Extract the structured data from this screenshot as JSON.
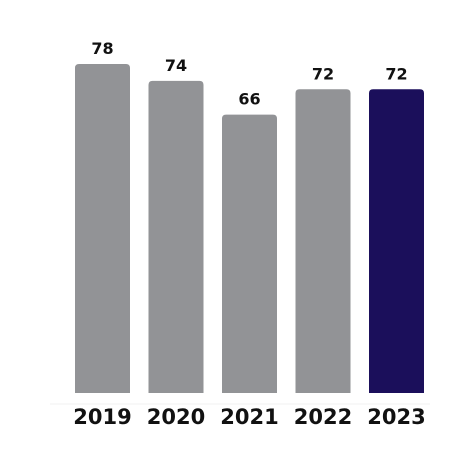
{
  "chart_data": {
    "type": "bar",
    "categories": [
      "2019",
      "2020",
      "2021",
      "2022",
      "2023"
    ],
    "values": [
      78,
      74,
      66,
      72,
      72
    ],
    "value_labels": [
      "78",
      "74",
      "66",
      "72",
      "72"
    ],
    "title": "",
    "xlabel": "",
    "ylabel": "",
    "ylim": [
      0,
      78
    ],
    "grid": false,
    "legend": "none",
    "colors": {
      "default_bar": "#929396",
      "highlight_bar": "#1b0f5b",
      "text": "#111111",
      "axis": "#f2f2f2"
    },
    "highlight_index": 4
  }
}
